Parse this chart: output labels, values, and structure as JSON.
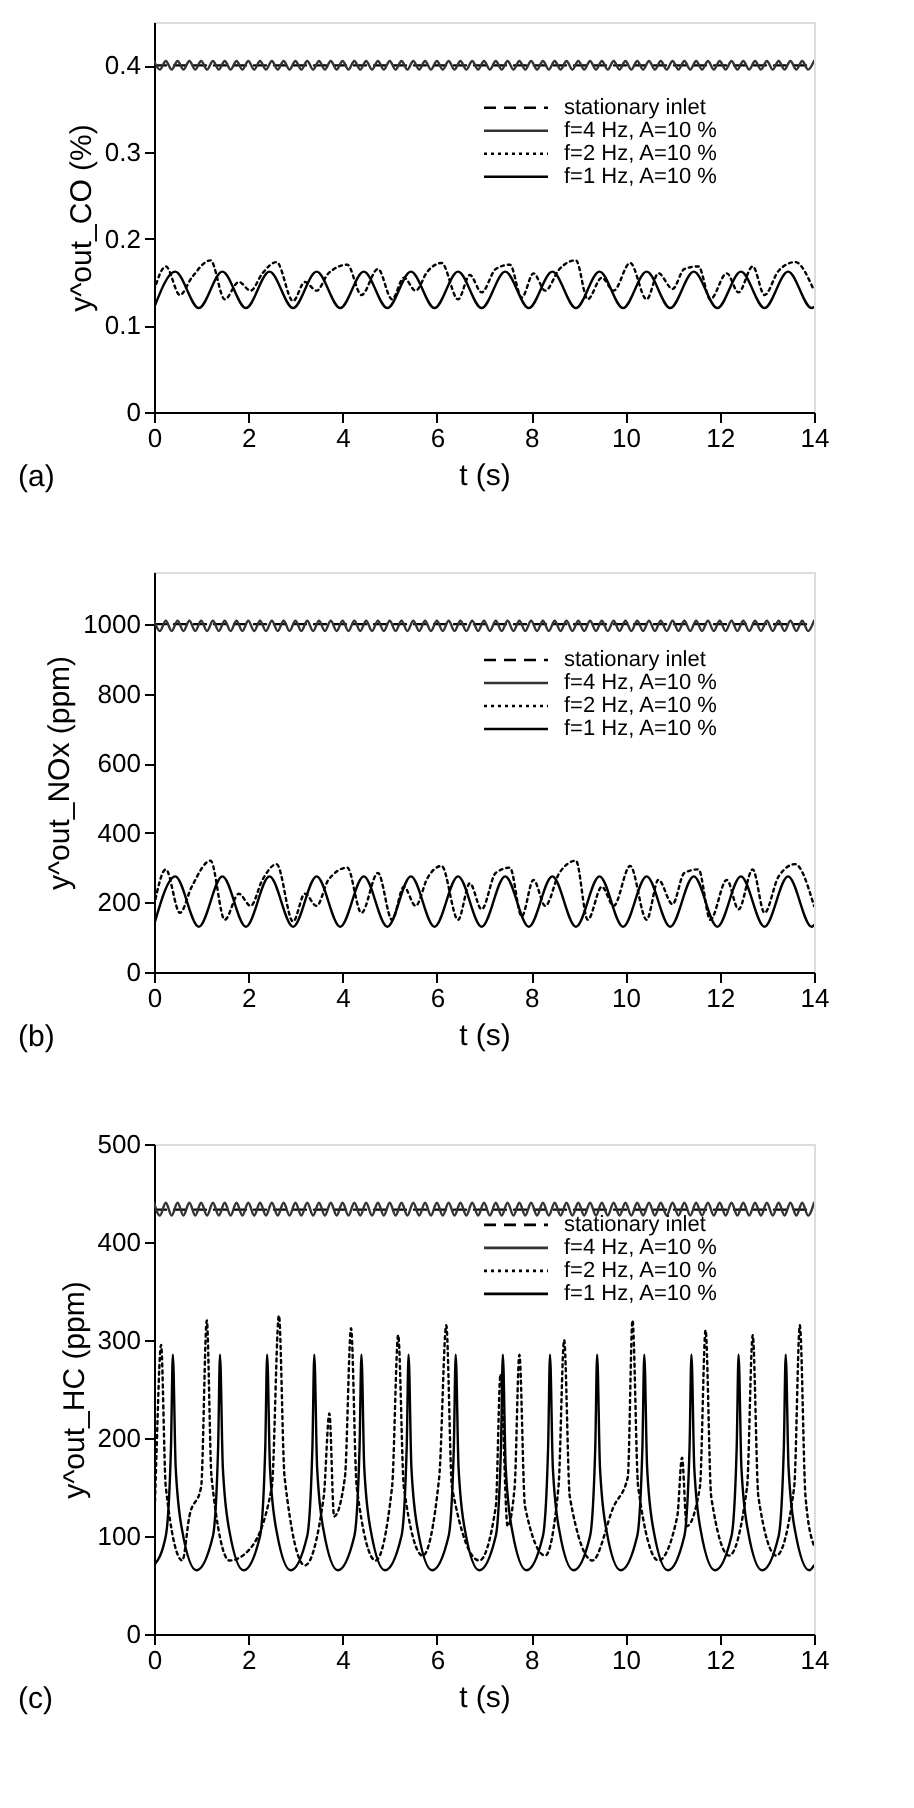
{
  "chart_data": [
    {
      "type": "line",
      "xlabel": "t (s)",
      "ylabel": "y^out_CO (%)",
      "annotations": [
        "(a)"
      ],
      "xlim": [
        0,
        14
      ],
      "xticks": [
        0,
        2,
        4,
        6,
        8,
        10,
        12,
        14
      ],
      "ylim": [
        0,
        0.45
      ],
      "yticks": [
        0,
        0.1,
        0.2,
        0.3,
        0.4
      ],
      "grid": false,
      "legend": "right",
      "series": [
        {
          "name": "stationary inlet",
          "color": "#000000",
          "line_style": "dashed",
          "x": [
            0,
            14
          ],
          "values": [
            0.4,
            0.4
          ]
        },
        {
          "name": "f=4 Hz, A=10 %",
          "color": "#333333",
          "line_style": "solid",
          "x": [
            0,
            0.125,
            0.25,
            0.375,
            0.5,
            0.625,
            0.75,
            0.875,
            1,
            1.125,
            1.25,
            1.375,
            1.5,
            1.625,
            1.75,
            1.875,
            2,
            2.125,
            2.25,
            2.375,
            2.5,
            2.625,
            2.75,
            2.875,
            3,
            3.125,
            3.25,
            3.375,
            3.5,
            3.625,
            3.75,
            3.875,
            4,
            4.125,
            4.25,
            4.375,
            4.5,
            4.625,
            4.75,
            4.875,
            5,
            5.125,
            5.25,
            5.375,
            5.5,
            5.625,
            5.75,
            5.875,
            6,
            6.125,
            6.25,
            6.375,
            6.5,
            6.625,
            6.75,
            6.875,
            7,
            7.125,
            7.25,
            7.375,
            7.5,
            7.625,
            7.75,
            7.875,
            8,
            8.125,
            8.25,
            8.375,
            8.5,
            8.625,
            8.75,
            8.875,
            9,
            9.125,
            9.25,
            9.375,
            9.5,
            9.625,
            9.75,
            9.875,
            10,
            10.125,
            10.25,
            10.375,
            10.5,
            10.625,
            10.75,
            10.875,
            11,
            11.125,
            11.25,
            11.375,
            11.5,
            11.625,
            11.75,
            11.875,
            12,
            12.125,
            12.25,
            12.375,
            12.5,
            12.625,
            12.75,
            12.875,
            13,
            13.125,
            13.25,
            13.375,
            13.5,
            13.625,
            13.75,
            13.875,
            14
          ],
          "values": [
            0.405,
            0.395,
            0.405,
            0.395,
            0.405,
            0.395,
            0.405,
            0.395,
            0.405,
            0.395,
            0.405,
            0.395,
            0.405,
            0.395,
            0.405,
            0.395,
            0.405,
            0.395,
            0.405,
            0.395,
            0.405,
            0.395,
            0.405,
            0.395,
            0.405,
            0.395,
            0.405,
            0.395,
            0.405,
            0.395,
            0.405,
            0.395,
            0.405,
            0.395,
            0.405,
            0.395,
            0.405,
            0.395,
            0.405,
            0.395,
            0.405,
            0.395,
            0.405,
            0.395,
            0.405,
            0.395,
            0.405,
            0.395,
            0.405,
            0.395,
            0.405,
            0.395,
            0.405,
            0.395,
            0.405,
            0.395,
            0.405,
            0.395,
            0.405,
            0.395,
            0.405,
            0.395,
            0.405,
            0.395,
            0.405,
            0.395,
            0.405,
            0.395,
            0.405,
            0.395,
            0.405,
            0.395,
            0.405,
            0.395,
            0.405,
            0.395,
            0.405,
            0.395,
            0.405,
            0.395,
            0.405,
            0.395,
            0.405,
            0.395,
            0.405,
            0.395,
            0.405,
            0.395,
            0.405,
            0.395,
            0.405,
            0.395,
            0.405,
            0.395,
            0.405,
            0.395,
            0.405,
            0.395,
            0.405,
            0.395,
            0.405,
            0.395,
            0.405,
            0.395,
            0.405,
            0.395,
            0.405,
            0.395,
            0.405,
            0.395,
            0.405,
            0.395,
            0.405
          ]
        },
        {
          "name": "f=2 Hz, A=10 %",
          "color": "#000000",
          "line_style": "dotted",
          "x": [
            0,
            0.25,
            0.55,
            0.8,
            1.2,
            1.5,
            1.8,
            2.05,
            2.3,
            2.6,
            2.95,
            3.2,
            3.45,
            3.7,
            4.1,
            4.4,
            4.75,
            5.05,
            5.3,
            5.55,
            5.8,
            6.1,
            6.45,
            6.7,
            6.95,
            7.25,
            7.55,
            7.8,
            8.05,
            8.3,
            8.6,
            8.95,
            9.2,
            9.5,
            9.75,
            10.1,
            10.45,
            10.7,
            11.0,
            11.25,
            11.55,
            11.8,
            12.15,
            12.4,
            12.7,
            12.95,
            13.25,
            13.6,
            14
          ],
          "values": [
            0.14,
            0.168,
            0.135,
            0.155,
            0.175,
            0.13,
            0.15,
            0.14,
            0.16,
            0.173,
            0.128,
            0.15,
            0.14,
            0.16,
            0.17,
            0.135,
            0.165,
            0.13,
            0.155,
            0.14,
            0.162,
            0.172,
            0.13,
            0.158,
            0.138,
            0.165,
            0.17,
            0.132,
            0.16,
            0.14,
            0.165,
            0.175,
            0.13,
            0.155,
            0.14,
            0.172,
            0.13,
            0.16,
            0.142,
            0.165,
            0.168,
            0.13,
            0.16,
            0.138,
            0.168,
            0.135,
            0.163,
            0.173,
            0.14
          ]
        },
        {
          "name": "f=1 Hz, A=10 %",
          "color": "#000000",
          "line_style": "solid",
          "x": [
            0,
            0.45,
            0.95,
            1.45,
            1.95,
            2.45,
            2.95,
            3.45,
            3.95,
            4.45,
            4.95,
            5.45,
            5.95,
            6.45,
            6.95,
            7.45,
            7.95,
            8.45,
            8.95,
            9.45,
            9.95,
            10.45,
            10.95,
            11.45,
            11.95,
            12.45,
            12.95,
            13.45,
            13.95,
            14
          ],
          "values": [
            0.12,
            0.162,
            0.12,
            0.162,
            0.12,
            0.162,
            0.12,
            0.162,
            0.12,
            0.162,
            0.12,
            0.162,
            0.12,
            0.162,
            0.12,
            0.162,
            0.12,
            0.162,
            0.12,
            0.162,
            0.12,
            0.162,
            0.12,
            0.162,
            0.12,
            0.162,
            0.12,
            0.162,
            0.12,
            0.121
          ]
        }
      ]
    },
    {
      "type": "line",
      "xlabel": "t (s)",
      "ylabel": "y^out_NOx (ppm)",
      "annotations": [
        "(b)"
      ],
      "xlim": [
        0,
        14
      ],
      "xticks": [
        0,
        2,
        4,
        6,
        8,
        10,
        12,
        14
      ],
      "ylim": [
        0,
        1150
      ],
      "yticks": [
        0,
        200,
        400,
        600,
        800,
        1000
      ],
      "grid": false,
      "legend": "right",
      "series": [
        {
          "name": "stationary inlet",
          "color": "#000000",
          "line_style": "dashed",
          "x": [
            0,
            14
          ],
          "values": [
            1000,
            1000
          ]
        },
        {
          "name": "f=4 Hz, A=10 %",
          "color": "#333333",
          "line_style": "solid",
          "x": [
            0,
            0.125,
            0.25,
            0.375,
            0.5,
            0.625,
            0.75,
            0.875,
            1,
            1.125,
            1.25,
            1.375,
            1.5,
            1.625,
            1.75,
            1.875,
            2,
            2.125,
            2.25,
            2.375,
            2.5,
            2.625,
            2.75,
            2.875,
            3,
            3.125,
            3.25,
            3.375,
            3.5,
            3.625,
            3.75,
            3.875,
            4,
            4.125,
            4.25,
            4.375,
            4.5,
            4.625,
            4.75,
            4.875,
            5,
            5.125,
            5.25,
            5.375,
            5.5,
            5.625,
            5.75,
            5.875,
            6,
            6.125,
            6.25,
            6.375,
            6.5,
            6.625,
            6.75,
            6.875,
            7,
            7.125,
            7.25,
            7.375,
            7.5,
            7.625,
            7.75,
            7.875,
            8,
            8.125,
            8.25,
            8.375,
            8.5,
            8.625,
            8.75,
            8.875,
            9,
            9.125,
            9.25,
            9.375,
            9.5,
            9.625,
            9.75,
            9.875,
            10,
            10.125,
            10.25,
            10.375,
            10.5,
            10.625,
            10.75,
            10.875,
            11,
            11.125,
            11.25,
            11.375,
            11.5,
            11.625,
            11.75,
            11.875,
            12,
            12.125,
            12.25,
            12.375,
            12.5,
            12.625,
            12.75,
            12.875,
            13,
            13.125,
            13.25,
            13.375,
            13.5,
            13.625,
            13.75,
            13.875,
            14
          ],
          "values": [
            1010,
            980,
            1010,
            980,
            1010,
            980,
            1010,
            980,
            1010,
            980,
            1010,
            980,
            1010,
            980,
            1010,
            980,
            1010,
            980,
            1010,
            980,
            1010,
            980,
            1010,
            980,
            1010,
            980,
            1010,
            980,
            1010,
            980,
            1010,
            980,
            1010,
            980,
            1010,
            980,
            1010,
            980,
            1010,
            980,
            1010,
            980,
            1010,
            980,
            1010,
            980,
            1010,
            980,
            1010,
            980,
            1010,
            980,
            1010,
            980,
            1010,
            980,
            1010,
            980,
            1010,
            980,
            1010,
            980,
            1010,
            980,
            1010,
            980,
            1010,
            980,
            1010,
            980,
            1010,
            980,
            1010,
            980,
            1010,
            980,
            1010,
            980,
            1010,
            980,
            1010,
            980,
            1010,
            980,
            1010,
            980,
            1010,
            980,
            1010,
            980,
            1010,
            980,
            1010,
            980,
            1010,
            980,
            1010,
            980,
            1010,
            980,
            1010,
            980,
            1010,
            980,
            1010,
            980,
            1010,
            980,
            1010,
            980,
            1010,
            980,
            1010
          ]
        },
        {
          "name": "f=2 Hz, A=10 %",
          "color": "#000000",
          "line_style": "dotted",
          "x": [
            0,
            0.25,
            0.55,
            0.8,
            1.2,
            1.5,
            1.8,
            2.05,
            2.3,
            2.6,
            2.95,
            3.2,
            3.45,
            3.7,
            4.1,
            4.4,
            4.75,
            5.05,
            5.3,
            5.55,
            5.8,
            6.1,
            6.45,
            6.7,
            6.95,
            7.25,
            7.55,
            7.8,
            8.05,
            8.3,
            8.6,
            8.95,
            9.2,
            9.5,
            9.75,
            10.1,
            10.45,
            10.7,
            11.0,
            11.25,
            11.55,
            11.8,
            12.15,
            12.4,
            12.7,
            12.95,
            13.25,
            13.6,
            14
          ],
          "values": [
            190,
            295,
            170,
            245,
            320,
            150,
            225,
            190,
            265,
            310,
            145,
            225,
            190,
            265,
            300,
            170,
            285,
            150,
            245,
            190,
            270,
            305,
            150,
            255,
            180,
            285,
            300,
            160,
            265,
            190,
            285,
            320,
            150,
            245,
            190,
            305,
            150,
            265,
            195,
            285,
            295,
            150,
            265,
            180,
            295,
            170,
            275,
            310,
            190
          ]
        },
        {
          "name": "f=1 Hz, A=10 %",
          "color": "#000000",
          "line_style": "solid",
          "x": [
            0,
            0.45,
            0.95,
            1.45,
            1.95,
            2.45,
            2.95,
            3.45,
            3.95,
            4.45,
            4.95,
            5.45,
            5.95,
            6.45,
            6.95,
            7.45,
            7.95,
            8.45,
            8.95,
            9.45,
            9.95,
            10.45,
            10.95,
            11.45,
            11.95,
            12.45,
            12.95,
            13.45,
            13.95,
            14
          ],
          "values": [
            135,
            275,
            130,
            275,
            130,
            275,
            130,
            275,
            130,
            275,
            130,
            275,
            130,
            275,
            130,
            275,
            130,
            275,
            130,
            275,
            130,
            275,
            130,
            275,
            130,
            275,
            130,
            275,
            130,
            135
          ]
        }
      ]
    },
    {
      "type": "line",
      "xlabel": "t (s)",
      "ylabel": "y^out_HC (ppm)",
      "annotations": [
        "(c)"
      ],
      "xlim": [
        0,
        14
      ],
      "xticks": [
        0,
        2,
        4,
        6,
        8,
        10,
        12,
        14
      ],
      "ylim": [
        0,
        500
      ],
      "yticks": [
        0,
        100,
        200,
        300,
        400,
        500
      ],
      "grid": false,
      "legend": "top right",
      "series": [
        {
          "name": "stationary inlet",
          "color": "#000000",
          "line_style": "dashed",
          "x": [
            0,
            14
          ],
          "values": [
            433,
            433
          ]
        },
        {
          "name": "f=4 Hz, A=10 %",
          "color": "#333333",
          "line_style": "solid",
          "x": [
            0,
            0.125,
            0.25,
            0.375,
            0.5,
            0.625,
            0.75,
            0.875,
            1,
            1.125,
            1.25,
            1.375,
            1.5,
            1.625,
            1.75,
            1.875,
            2,
            2.125,
            2.25,
            2.375,
            2.5,
            2.625,
            2.75,
            2.875,
            3,
            3.125,
            3.25,
            3.375,
            3.5,
            3.625,
            3.75,
            3.875,
            4,
            4.125,
            4.25,
            4.375,
            4.5,
            4.625,
            4.75,
            4.875,
            5,
            5.125,
            5.25,
            5.375,
            5.5,
            5.625,
            5.75,
            5.875,
            6,
            6.125,
            6.25,
            6.375,
            6.5,
            6.625,
            6.75,
            6.875,
            7,
            7.125,
            7.25,
            7.375,
            7.5,
            7.625,
            7.75,
            7.875,
            8,
            8.125,
            8.25,
            8.375,
            8.5,
            8.625,
            8.75,
            8.875,
            9,
            9.125,
            9.25,
            9.375,
            9.5,
            9.625,
            9.75,
            9.875,
            10,
            10.125,
            10.25,
            10.375,
            10.5,
            10.625,
            10.75,
            10.875,
            11,
            11.125,
            11.25,
            11.375,
            11.5,
            11.625,
            11.75,
            11.875,
            12,
            12.125,
            12.25,
            12.375,
            12.5,
            12.625,
            12.75,
            12.875,
            13,
            13.125,
            13.25,
            13.375,
            13.5,
            13.625,
            13.75,
            13.875,
            14
          ],
          "values": [
            440,
            427,
            440,
            427,
            440,
            427,
            440,
            427,
            440,
            427,
            440,
            427,
            440,
            427,
            440,
            427,
            440,
            427,
            440,
            427,
            440,
            427,
            440,
            427,
            440,
            427,
            440,
            427,
            440,
            427,
            440,
            427,
            440,
            427,
            440,
            427,
            440,
            427,
            440,
            427,
            440,
            427,
            440,
            427,
            440,
            427,
            440,
            427,
            440,
            427,
            440,
            427,
            440,
            427,
            440,
            427,
            440,
            427,
            440,
            427,
            440,
            427,
            440,
            427,
            440,
            427,
            440,
            427,
            440,
            427,
            440,
            427,
            440,
            427,
            440,
            427,
            440,
            427,
            440,
            427,
            440,
            427,
            440,
            427,
            440,
            427,
            440,
            427,
            440,
            427,
            440,
            427,
            440,
            427,
            440,
            427,
            440,
            427,
            440,
            427,
            440,
            427,
            440,
            427,
            440,
            427,
            440,
            427,
            440,
            427,
            440,
            427,
            440
          ]
        },
        {
          "name": "f=2 Hz, A=10 %",
          "color": "#000000",
          "line_style": "dotted",
          "x": [
            0,
            0.05,
            0.15,
            0.25,
            0.6,
            0.75,
            1.0,
            1.12,
            1.22,
            1.6,
            2.0,
            2.5,
            2.65,
            2.77,
            3.2,
            3.6,
            3.72,
            3.82,
            4.05,
            4.18,
            4.3,
            4.7,
            5.05,
            5.18,
            5.3,
            5.7,
            6.05,
            6.2,
            6.32,
            6.9,
            7.25,
            7.35,
            7.5,
            7.65,
            7.75,
            7.87,
            8.3,
            8.58,
            8.7,
            8.82,
            9.3,
            9.75,
            10.05,
            10.15,
            10.27,
            10.7,
            11.1,
            11.2,
            11.3,
            11.58,
            11.7,
            11.82,
            12.2,
            12.58,
            12.7,
            12.82,
            13.2,
            13.58,
            13.7,
            13.82,
            14
          ],
          "values": [
            100,
            180,
            295,
            150,
            75,
            120,
            150,
            320,
            160,
            75,
            85,
            150,
            325,
            160,
            70,
            140,
            225,
            120,
            160,
            312,
            150,
            75,
            150,
            305,
            150,
            80,
            160,
            315,
            150,
            75,
            130,
            265,
            110,
            150,
            285,
            130,
            80,
            150,
            300,
            140,
            75,
            130,
            160,
            320,
            150,
            75,
            120,
            180,
            110,
            150,
            310,
            140,
            80,
            150,
            305,
            140,
            80,
            150,
            315,
            140,
            90
          ]
        },
        {
          "name": "f=1 Hz, A=10 %",
          "color": "#000000",
          "line_style": "solid",
          "x": [
            0,
            0.25,
            0.36,
            0.4,
            0.46,
            0.6,
            0.9,
            1.25,
            1.36,
            1.4,
            1.46,
            1.6,
            1.9,
            2.25,
            2.36,
            2.4,
            2.46,
            2.6,
            2.9,
            3.25,
            3.36,
            3.4,
            3.46,
            3.6,
            3.9,
            4.25,
            4.36,
            4.4,
            4.46,
            4.6,
            4.9,
            5.25,
            5.36,
            5.4,
            5.46,
            5.6,
            5.9,
            6.25,
            6.36,
            6.4,
            6.46,
            6.6,
            6.9,
            7.25,
            7.36,
            7.4,
            7.46,
            7.6,
            7.9,
            8.25,
            8.36,
            8.4,
            8.46,
            8.6,
            8.9,
            9.25,
            9.36,
            9.4,
            9.46,
            9.6,
            9.9,
            10.25,
            10.36,
            10.4,
            10.46,
            10.6,
            10.9,
            11.25,
            11.36,
            11.4,
            11.46,
            11.6,
            11.9,
            12.25,
            12.36,
            12.4,
            12.46,
            12.6,
            12.9,
            13.25,
            13.36,
            13.4,
            13.46,
            13.6,
            13.9,
            14
          ],
          "values": [
            70,
            100,
            190,
            285,
            170,
            105,
            65,
            100,
            190,
            285,
            170,
            105,
            65,
            100,
            190,
            285,
            170,
            105,
            65,
            100,
            190,
            285,
            170,
            105,
            65,
            100,
            190,
            285,
            170,
            105,
            65,
            100,
            190,
            285,
            170,
            105,
            65,
            100,
            190,
            285,
            170,
            105,
            65,
            100,
            190,
            285,
            170,
            105,
            65,
            100,
            190,
            285,
            170,
            105,
            65,
            100,
            190,
            285,
            170,
            105,
            65,
            100,
            190,
            285,
            170,
            105,
            65,
            100,
            190,
            285,
            170,
            105,
            65,
            100,
            190,
            285,
            170,
            105,
            65,
            100,
            190,
            285,
            170,
            105,
            65,
            70
          ]
        }
      ]
    }
  ]
}
